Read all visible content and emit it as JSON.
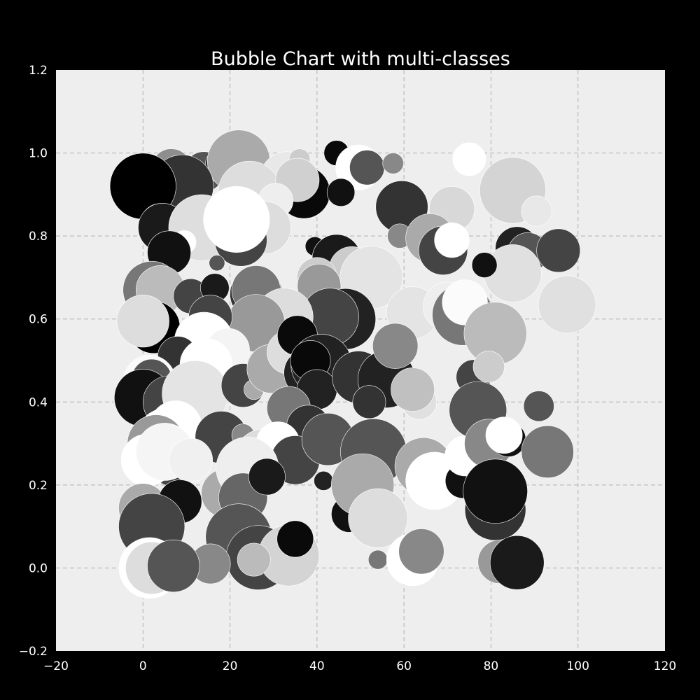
{
  "chart_data": {
    "type": "scatter",
    "title": "Bubble Chart with multi-classes",
    "xlabel": "",
    "ylabel": "",
    "xlim": [
      -20,
      120
    ],
    "ylim": [
      -0.2,
      1.2
    ],
    "x_ticks": [
      -20,
      0,
      20,
      40,
      60,
      80,
      100,
      120
    ],
    "y_ticks": [
      -0.2,
      0.0,
      0.2,
      0.4,
      0.6,
      0.8,
      1.0,
      1.2
    ],
    "x_tick_labels": [
      "−20",
      "0",
      "20",
      "40",
      "60",
      "80",
      "100",
      "120"
    ],
    "y_tick_labels": [
      "−0.2",
      "0.0",
      "0.2",
      "0.4",
      "0.6",
      "0.8",
      "1.0",
      "1.2"
    ],
    "grid": true,
    "plot_background": "#eeeeee",
    "figure_background": "#000000",
    "color_scale": "grayscale",
    "bubble_size_unit": "radius in x-axis units",
    "points": [
      {
        "x": 6.5,
        "y": 0.962,
        "size": 4.6,
        "gray": "#8e8e8e"
      },
      {
        "x": 14,
        "y": 0.955,
        "size": 4.6,
        "gray": "#555555"
      },
      {
        "x": 18.5,
        "y": 0.97,
        "size": 4.2,
        "gray": "#333333"
      },
      {
        "x": 22,
        "y": 0.98,
        "size": 7.2,
        "gray": "#aaaaaa"
      },
      {
        "x": 33,
        "y": 0.94,
        "size": 6.0,
        "gray": "#e8e8e8"
      },
      {
        "x": 36,
        "y": 0.985,
        "size": 2.4,
        "gray": "#cccccc"
      },
      {
        "x": 37,
        "y": 0.905,
        "size": 6.0,
        "gray": "#090909"
      },
      {
        "x": 24.5,
        "y": 0.905,
        "size": 7.2,
        "gray": "#dddddd"
      },
      {
        "x": 44.5,
        "y": 1.0,
        "size": 2.9,
        "gray": "#090909"
      },
      {
        "x": 49.5,
        "y": 0.965,
        "size": 5.2,
        "gray": "#ffffff"
      },
      {
        "x": 51.5,
        "y": 0.965,
        "size": 4.0,
        "gray": "#555555"
      },
      {
        "x": 57.5,
        "y": 0.975,
        "size": 2.4,
        "gray": "#888888"
      },
      {
        "x": 75,
        "y": 0.985,
        "size": 3.8,
        "gray": "#ffffff"
      },
      {
        "x": 85,
        "y": 0.91,
        "size": 7.6,
        "gray": "#d4d4d4"
      },
      {
        "x": 9,
        "y": 0.92,
        "size": 7.2,
        "gray": "#333333"
      },
      {
        "x": 0,
        "y": 0.92,
        "size": 7.6,
        "gray": "#000000"
      },
      {
        "x": 35.5,
        "y": 0.935,
        "size": 5.0,
        "gray": "#d0d0d0"
      },
      {
        "x": 45.5,
        "y": 0.905,
        "size": 3.2,
        "gray": "#111111"
      },
      {
        "x": 30.5,
        "y": 0.885,
        "size": 4.0,
        "gray": "#eeeeee"
      },
      {
        "x": 59.5,
        "y": 0.87,
        "size": 6.0,
        "gray": "#333333"
      },
      {
        "x": 71,
        "y": 0.865,
        "size": 5.2,
        "gray": "#d8d8d8"
      },
      {
        "x": 90.5,
        "y": 0.86,
        "size": 3.5,
        "gray": "#e8e8e8"
      },
      {
        "x": 4,
        "y": 0.83,
        "size": 4.6,
        "gray": "#ffffff"
      },
      {
        "x": 4.5,
        "y": 0.82,
        "size": 5.6,
        "gray": "#1a1a1a"
      },
      {
        "x": 13.5,
        "y": 0.82,
        "size": 7.6,
        "gray": "#dedede"
      },
      {
        "x": 9.5,
        "y": 0.785,
        "size": 2.7,
        "gray": "#ffffff"
      },
      {
        "x": 28,
        "y": 0.82,
        "size": 6.0,
        "gray": "#dddddd"
      },
      {
        "x": 22.5,
        "y": 0.79,
        "size": 6.0,
        "gray": "#444444"
      },
      {
        "x": 21.5,
        "y": 0.84,
        "size": 7.6,
        "gray": "#ffffff"
      },
      {
        "x": 59,
        "y": 0.8,
        "size": 2.8,
        "gray": "#888888"
      },
      {
        "x": 66,
        "y": 0.795,
        "size": 5.6,
        "gray": "#aaaaaa"
      },
      {
        "x": 69,
        "y": 0.765,
        "size": 5.6,
        "gray": "#444444"
      },
      {
        "x": 71,
        "y": 0.79,
        "size": 4.0,
        "gray": "#ffffff"
      },
      {
        "x": 86,
        "y": 0.77,
        "size": 5.0,
        "gray": "#222222"
      },
      {
        "x": 88.5,
        "y": 0.76,
        "size": 4.6,
        "gray": "#555555"
      },
      {
        "x": 95.5,
        "y": 0.765,
        "size": 5.0,
        "gray": "#444444"
      },
      {
        "x": 85,
        "y": 0.71,
        "size": 6.6,
        "gray": "#e0e0e0"
      },
      {
        "x": 78.5,
        "y": 0.73,
        "size": 2.9,
        "gray": "#111111"
      },
      {
        "x": 39.5,
        "y": 0.775,
        "size": 2.2,
        "gray": "#111111"
      },
      {
        "x": 17,
        "y": 0.735,
        "size": 1.8,
        "gray": "#555555"
      },
      {
        "x": 6,
        "y": 0.76,
        "size": 5.0,
        "gray": "#111111"
      },
      {
        "x": 2,
        "y": 0.67,
        "size": 6.6,
        "gray": "#777777"
      },
      {
        "x": 4,
        "y": 0.67,
        "size": 5.6,
        "gray": "#bbbbbb"
      },
      {
        "x": 11,
        "y": 0.655,
        "size": 4.0,
        "gray": "#444444"
      },
      {
        "x": 16.5,
        "y": 0.675,
        "size": 3.3,
        "gray": "#1a1a1a"
      },
      {
        "x": 26,
        "y": 0.66,
        "size": 6.0,
        "gray": "#333333"
      },
      {
        "x": 26,
        "y": 0.67,
        "size": 5.6,
        "gray": "#777777"
      },
      {
        "x": 44.5,
        "y": 0.745,
        "size": 5.6,
        "gray": "#1a1a1a"
      },
      {
        "x": 48,
        "y": 0.72,
        "size": 5.2,
        "gray": "#cccccc"
      },
      {
        "x": 40,
        "y": 0.7,
        "size": 4.6,
        "gray": "#cccccc"
      },
      {
        "x": 40.5,
        "y": 0.68,
        "size": 5.0,
        "gray": "#999999"
      },
      {
        "x": 52.5,
        "y": 0.7,
        "size": 7.2,
        "gray": "#e4e4e4"
      },
      {
        "x": 46.5,
        "y": 0.6,
        "size": 7.0,
        "gray": "#222222"
      },
      {
        "x": 43,
        "y": 0.605,
        "size": 6.6,
        "gray": "#444444"
      },
      {
        "x": 32.5,
        "y": 0.605,
        "size": 6.6,
        "gray": "#dddddd"
      },
      {
        "x": 26,
        "y": 0.59,
        "size": 6.6,
        "gray": "#999999"
      },
      {
        "x": 15.5,
        "y": 0.605,
        "size": 5.0,
        "gray": "#444444"
      },
      {
        "x": 2.5,
        "y": 0.58,
        "size": 6.0,
        "gray": "#000000"
      },
      {
        "x": 0,
        "y": 0.595,
        "size": 6.0,
        "gray": "#dddddd"
      },
      {
        "x": 62,
        "y": 0.615,
        "size": 6.0,
        "gray": "#e4e4e4"
      },
      {
        "x": 70,
        "y": 0.63,
        "size": 5.6,
        "gray": "#eeeeee"
      },
      {
        "x": 73.5,
        "y": 0.61,
        "size": 7.0,
        "gray": "#777777"
      },
      {
        "x": 74,
        "y": 0.64,
        "size": 5.2,
        "gray": "#fbfbfb"
      },
      {
        "x": 81,
        "y": 0.565,
        "size": 7.2,
        "gray": "#bbbbbb"
      },
      {
        "x": 97.5,
        "y": 0.635,
        "size": 6.6,
        "gray": "#e0e0e0"
      },
      {
        "x": 14,
        "y": 0.545,
        "size": 6.8,
        "gray": "#ffffff"
      },
      {
        "x": 19.5,
        "y": 0.525,
        "size": 5.0,
        "gray": "#f4f4f4"
      },
      {
        "x": 8,
        "y": 0.51,
        "size": 4.6,
        "gray": "#333333"
      },
      {
        "x": 14.5,
        "y": 0.49,
        "size": 6.0,
        "gray": "#ffffff"
      },
      {
        "x": 1.5,
        "y": 0.45,
        "size": 6.0,
        "gray": "#fafafa"
      },
      {
        "x": 2,
        "y": 0.455,
        "size": 4.6,
        "gray": "#555555"
      },
      {
        "x": 0,
        "y": 0.41,
        "size": 6.6,
        "gray": "#111111"
      },
      {
        "x": 6,
        "y": 0.4,
        "size": 6.0,
        "gray": "#444444"
      },
      {
        "x": 12,
        "y": 0.42,
        "size": 7.6,
        "gray": "#e4e4e4"
      },
      {
        "x": 23,
        "y": 0.44,
        "size": 5.0,
        "gray": "#444444"
      },
      {
        "x": 25.5,
        "y": 0.43,
        "size": 2.3,
        "gray": "#aaaaaa"
      },
      {
        "x": 29.5,
        "y": 0.48,
        "size": 5.6,
        "gray": "#aaaaaa"
      },
      {
        "x": 33.5,
        "y": 0.52,
        "size": 5.0,
        "gray": "#dddddd"
      },
      {
        "x": 35.5,
        "y": 0.56,
        "size": 4.6,
        "gray": "#0a0a0a"
      },
      {
        "x": 38,
        "y": 0.47,
        "size": 5.6,
        "gray": "#222222"
      },
      {
        "x": 41,
        "y": 0.49,
        "size": 7.0,
        "gray": "#222222"
      },
      {
        "x": 38.5,
        "y": 0.5,
        "size": 4.6,
        "gray": "#090909"
      },
      {
        "x": 40,
        "y": 0.43,
        "size": 4.6,
        "gray": "#222222"
      },
      {
        "x": 49.5,
        "y": 0.46,
        "size": 6.0,
        "gray": "#333333"
      },
      {
        "x": 56,
        "y": 0.455,
        "size": 6.6,
        "gray": "#222222"
      },
      {
        "x": 52,
        "y": 0.4,
        "size": 3.8,
        "gray": "#333333"
      },
      {
        "x": 58,
        "y": 0.535,
        "size": 5.2,
        "gray": "#888888"
      },
      {
        "x": 63.5,
        "y": 0.4,
        "size": 4.0,
        "gray": "#e0e0e0"
      },
      {
        "x": 62,
        "y": 0.43,
        "size": 5.0,
        "gray": "#c0c0c0"
      },
      {
        "x": 76,
        "y": 0.46,
        "size": 4.0,
        "gray": "#444444"
      },
      {
        "x": 79.5,
        "y": 0.485,
        "size": 3.6,
        "gray": "#cccccc"
      },
      {
        "x": 77,
        "y": 0.38,
        "size": 6.6,
        "gray": "#555555"
      },
      {
        "x": 91,
        "y": 0.39,
        "size": 3.5,
        "gray": "#555555"
      },
      {
        "x": 33.5,
        "y": 0.385,
        "size": 5.0,
        "gray": "#777777"
      },
      {
        "x": 38,
        "y": 0.34,
        "size": 5.0,
        "gray": "#333333"
      },
      {
        "x": 5.5,
        "y": 0.31,
        "size": 7.2,
        "gray": "#ffffff"
      },
      {
        "x": 7.5,
        "y": 0.34,
        "size": 6.0,
        "gray": "#ffffff"
      },
      {
        "x": 3,
        "y": 0.3,
        "size": 6.6,
        "gray": "#999999"
      },
      {
        "x": 18,
        "y": 0.315,
        "size": 6.0,
        "gray": "#444444"
      },
      {
        "x": 23,
        "y": 0.32,
        "size": 2.6,
        "gray": "#888888"
      },
      {
        "x": 28,
        "y": 0.26,
        "size": 7.2,
        "gray": "#dddddd"
      },
      {
        "x": 31,
        "y": 0.3,
        "size": 5.0,
        "gray": "#ffffff"
      },
      {
        "x": 35,
        "y": 0.26,
        "size": 5.6,
        "gray": "#444444"
      },
      {
        "x": 42.5,
        "y": 0.31,
        "size": 6.0,
        "gray": "#555555"
      },
      {
        "x": 53,
        "y": 0.28,
        "size": 7.6,
        "gray": "#555555"
      },
      {
        "x": 64.5,
        "y": 0.245,
        "size": 6.6,
        "gray": "#aaaaaa"
      },
      {
        "x": 67,
        "y": 0.21,
        "size": 6.6,
        "gray": "#ffffff"
      },
      {
        "x": 73.5,
        "y": 0.21,
        "size": 4.0,
        "gray": "#111111"
      },
      {
        "x": 74,
        "y": 0.27,
        "size": 4.6,
        "gray": "#ffffff"
      },
      {
        "x": 79.5,
        "y": 0.3,
        "size": 5.6,
        "gray": "#888888"
      },
      {
        "x": 84,
        "y": 0.31,
        "size": 4.0,
        "gray": "#111111"
      },
      {
        "x": 83,
        "y": 0.32,
        "size": 4.2,
        "gray": "#ffffff"
      },
      {
        "x": 93,
        "y": 0.28,
        "size": 6.0,
        "gray": "#777777"
      },
      {
        "x": 7,
        "y": 0.26,
        "size": 6.0,
        "gray": "#444444"
      },
      {
        "x": 1,
        "y": 0.26,
        "size": 6.0,
        "gray": "#ffffff"
      },
      {
        "x": 5,
        "y": 0.28,
        "size": 6.6,
        "gray": "#f5f5f5"
      },
      {
        "x": 11,
        "y": 0.26,
        "size": 5.0,
        "gray": "#f0f0f0"
      },
      {
        "x": 19,
        "y": 0.18,
        "size": 5.6,
        "gray": "#aaaaaa"
      },
      {
        "x": 24,
        "y": 0.24,
        "size": 7.2,
        "gray": "#eeeeee"
      },
      {
        "x": 23,
        "y": 0.17,
        "size": 5.6,
        "gray": "#666666"
      },
      {
        "x": 28.5,
        "y": 0.22,
        "size": 4.2,
        "gray": "#1a1a1a"
      },
      {
        "x": 41.5,
        "y": 0.21,
        "size": 2.2,
        "gray": "#222222"
      },
      {
        "x": 47.5,
        "y": 0.13,
        "size": 4.2,
        "gray": "#111111"
      },
      {
        "x": 50.5,
        "y": 0.2,
        "size": 7.2,
        "gray": "#aaaaaa"
      },
      {
        "x": 54,
        "y": 0.12,
        "size": 6.8,
        "gray": "#dddddd"
      },
      {
        "x": 54,
        "y": 0.02,
        "size": 2.2,
        "gray": "#777777"
      },
      {
        "x": 62,
        "y": 0.02,
        "size": 6.0,
        "gray": "#ffffff"
      },
      {
        "x": 64,
        "y": 0.04,
        "size": 5.2,
        "gray": "#888888"
      },
      {
        "x": 81,
        "y": 0.14,
        "size": 7.0,
        "gray": "#333333"
      },
      {
        "x": 81,
        "y": 0.185,
        "size": 7.4,
        "gray": "#111111"
      },
      {
        "x": 82,
        "y": 0.015,
        "size": 5.0,
        "gray": "#999999"
      },
      {
        "x": 86,
        "y": 0.013,
        "size": 6.2,
        "gray": "#1a1a1a"
      },
      {
        "x": 0,
        "y": 0.145,
        "size": 5.6,
        "gray": "#aaaaaa"
      },
      {
        "x": 8.5,
        "y": 0.16,
        "size": 5.0,
        "gray": "#111111"
      },
      {
        "x": 2,
        "y": 0.1,
        "size": 7.6,
        "gray": "#444444"
      },
      {
        "x": 22,
        "y": 0.075,
        "size": 7.6,
        "gray": "#555555"
      },
      {
        "x": 26.5,
        "y": 0.025,
        "size": 7.4,
        "gray": "#444444"
      },
      {
        "x": 33.5,
        "y": 0.03,
        "size": 7.0,
        "gray": "#d4d4d4"
      },
      {
        "x": 35,
        "y": 0.07,
        "size": 4.2,
        "gray": "#0a0a0a"
      },
      {
        "x": 25.5,
        "y": 0.02,
        "size": 3.8,
        "gray": "#bbbbbb"
      },
      {
        "x": 15.5,
        "y": 0.01,
        "size": 4.6,
        "gray": "#888888"
      },
      {
        "x": 1.5,
        "y": 0.0,
        "size": 7.0,
        "gray": "#ffffff"
      },
      {
        "x": 2,
        "y": 0.0,
        "size": 6.0,
        "gray": "#dddddd"
      },
      {
        "x": 7,
        "y": 0.005,
        "size": 6.0,
        "gray": "#555555"
      }
    ]
  }
}
